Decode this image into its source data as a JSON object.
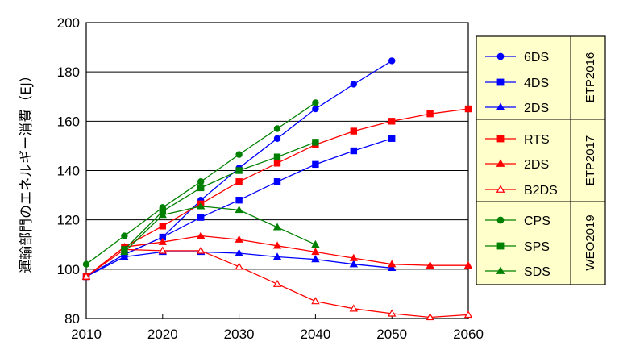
{
  "chart_data": {
    "type": "line",
    "ylabel": "運輸部門のエネルギー消費（EJ）",
    "xlabel": "",
    "xlim": [
      2010,
      2060
    ],
    "ylim": [
      80,
      200
    ],
    "x_ticks": [
      "2010",
      "2020",
      "2030",
      "2040",
      "2050",
      "2060"
    ],
    "y_ticks": [
      "80",
      "100",
      "120",
      "140",
      "160",
      "180",
      "200"
    ],
    "grid": "horizontal",
    "legend_position": "right",
    "colors": {
      "blue": "#0000ff",
      "red": "#ff0000",
      "green": "#008000",
      "legend_bg": "#ffffcc"
    },
    "legend_groups": [
      {
        "name": "ETP2016",
        "series": [
          "6DS",
          "4DS",
          "2DS"
        ]
      },
      {
        "name": "ETP2017",
        "series": [
          "RTS",
          "2DS",
          "B2DS"
        ]
      },
      {
        "name": "WEO2019",
        "series": [
          "CPS",
          "SPS",
          "SDS"
        ]
      }
    ],
    "series": [
      {
        "name": "6DS",
        "group": "ETP2016",
        "color": "#0000ff",
        "marker": "circle",
        "filled": true,
        "points": [
          [
            2010,
            97
          ],
          [
            2015,
            106
          ],
          [
            2020,
            113
          ],
          [
            2025,
            128
          ],
          [
            2030,
            141
          ],
          [
            2035,
            153
          ],
          [
            2040,
            165
          ],
          [
            2045,
            175
          ],
          [
            2050,
            184.5
          ]
        ]
      },
      {
        "name": "4DS",
        "group": "ETP2016",
        "color": "#0000ff",
        "marker": "square",
        "filled": true,
        "points": [
          [
            2010,
            97
          ],
          [
            2015,
            106
          ],
          [
            2020,
            113
          ],
          [
            2025,
            121
          ],
          [
            2030,
            128
          ],
          [
            2035,
            135.5
          ],
          [
            2040,
            142.5
          ],
          [
            2045,
            148
          ],
          [
            2050,
            153
          ]
        ]
      },
      {
        "name": "2DS",
        "group": "ETP2016",
        "color": "#0000ff",
        "marker": "triangle",
        "filled": true,
        "points": [
          [
            2010,
            97
          ],
          [
            2015,
            105
          ],
          [
            2020,
            107
          ],
          [
            2025,
            107
          ],
          [
            2030,
            106.5
          ],
          [
            2035,
            105
          ],
          [
            2040,
            104
          ],
          [
            2045,
            102
          ],
          [
            2050,
            100.5
          ]
        ]
      },
      {
        "name": "RTS",
        "group": "ETP2017",
        "color": "#ff0000",
        "marker": "square",
        "filled": true,
        "points": [
          [
            2010,
            97
          ],
          [
            2015,
            109
          ],
          [
            2020,
            117.5
          ],
          [
            2025,
            126.5
          ],
          [
            2030,
            135.5
          ],
          [
            2035,
            143
          ],
          [
            2040,
            150.5
          ],
          [
            2045,
            156
          ],
          [
            2050,
            160
          ],
          [
            2055,
            163
          ],
          [
            2060,
            165
          ]
        ]
      },
      {
        "name": "2DS",
        "group": "ETP2017",
        "color": "#ff0000",
        "marker": "triangle",
        "filled": true,
        "points": [
          [
            2010,
            97
          ],
          [
            2015,
            109
          ],
          [
            2020,
            111
          ],
          [
            2025,
            113.5
          ],
          [
            2030,
            112
          ],
          [
            2035,
            109.5
          ],
          [
            2040,
            107
          ],
          [
            2045,
            104.5
          ],
          [
            2050,
            102
          ],
          [
            2055,
            101.5
          ],
          [
            2060,
            101.5
          ]
        ]
      },
      {
        "name": "B2DS",
        "group": "ETP2017",
        "color": "#ff0000",
        "marker": "triangle",
        "filled": false,
        "points": [
          [
            2010,
            97
          ],
          [
            2015,
            108
          ],
          [
            2020,
            107.5
          ],
          [
            2025,
            107.5
          ],
          [
            2030,
            101
          ],
          [
            2035,
            94
          ],
          [
            2040,
            87
          ],
          [
            2045,
            84
          ],
          [
            2050,
            82
          ],
          [
            2055,
            80.5
          ],
          [
            2060,
            81.5
          ]
        ]
      },
      {
        "name": "CPS",
        "group": "WEO2019",
        "color": "#008000",
        "marker": "circle",
        "filled": true,
        "points": [
          [
            2010,
            102
          ],
          [
            2015,
            113.5
          ],
          [
            2020,
            125
          ],
          [
            2025,
            135.5
          ],
          [
            2030,
            146.5
          ],
          [
            2035,
            157
          ],
          [
            2040,
            167.5
          ]
        ]
      },
      {
        "name": "SPS",
        "group": "WEO2019",
        "color": "#008000",
        "marker": "square",
        "filled": true,
        "points": [
          [
            2015,
            108
          ],
          [
            2020,
            123.5
          ],
          [
            2025,
            133
          ],
          [
            2030,
            140
          ],
          [
            2035,
            145.5
          ],
          [
            2040,
            151.5
          ]
        ]
      },
      {
        "name": "SDS",
        "group": "WEO2019",
        "color": "#008000",
        "marker": "triangle",
        "filled": true,
        "points": [
          [
            2015,
            107
          ],
          [
            2020,
            122
          ],
          [
            2025,
            125.5
          ],
          [
            2030,
            124
          ],
          [
            2035,
            117
          ],
          [
            2040,
            110
          ]
        ]
      }
    ]
  }
}
